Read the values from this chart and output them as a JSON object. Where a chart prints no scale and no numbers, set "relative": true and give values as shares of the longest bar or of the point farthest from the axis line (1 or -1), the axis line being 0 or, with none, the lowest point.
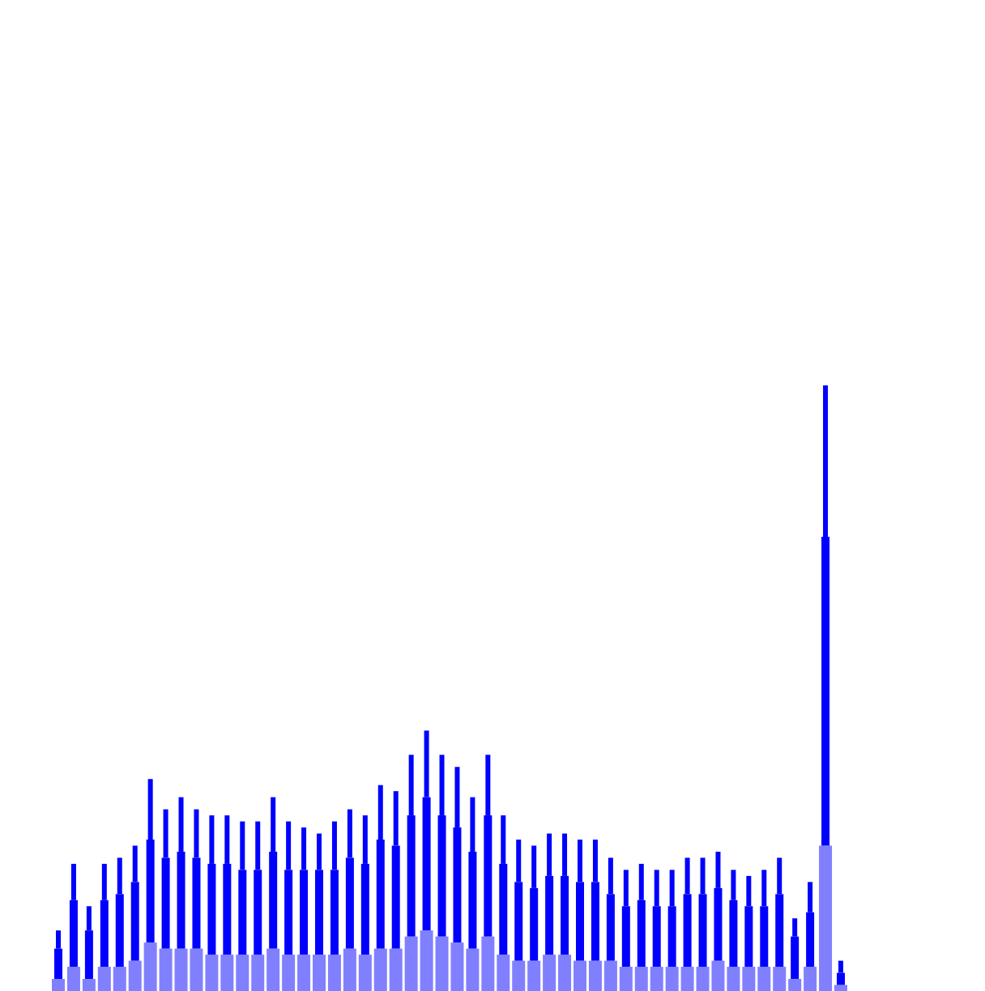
{
  "chart_data": {
    "type": "bar",
    "stacked": true,
    "relative": true,
    "categories": [
      null,
      null,
      null,
      null,
      null,
      null,
      null,
      null,
      null,
      null,
      null,
      null,
      null,
      null,
      null,
      null,
      null,
      null,
      null,
      null,
      null,
      null,
      null,
      null,
      null,
      null,
      null,
      null,
      null,
      null,
      null,
      null,
      null,
      null,
      null,
      null,
      null,
      null,
      null,
      null,
      null,
      null,
      null,
      null,
      null,
      null,
      null,
      null,
      null,
      null,
      null,
      null
    ],
    "series": [
      {
        "color": "#8080ff",
        "values": [
          0.02,
          0.04,
          0.02,
          0.04,
          0.04,
          0.05,
          0.08,
          0.07,
          0.07,
          0.07,
          0.06,
          0.06,
          0.06,
          0.06,
          0.07,
          0.06,
          0.06,
          0.06,
          0.06,
          0.07,
          0.06,
          0.07,
          0.07,
          0.09,
          0.1,
          0.09,
          0.08,
          0.07,
          0.09,
          0.06,
          0.05,
          0.05,
          0.06,
          0.06,
          0.05,
          0.05,
          0.05,
          0.04,
          0.04,
          0.04,
          0.04,
          0.04,
          0.04,
          0.05,
          0.04,
          0.04,
          0.04,
          0.04,
          0.02,
          0.04,
          0.24,
          0.01
        ]
      },
      {
        "color": "#0000ff",
        "values": [
          0.05,
          0.11,
          0.08,
          0.11,
          0.12,
          0.13,
          0.17,
          0.15,
          0.16,
          0.15,
          0.15,
          0.15,
          0.14,
          0.14,
          0.16,
          0.14,
          0.14,
          0.14,
          0.14,
          0.15,
          0.15,
          0.18,
          0.17,
          0.2,
          0.22,
          0.2,
          0.19,
          0.16,
          0.2,
          0.15,
          0.13,
          0.12,
          0.13,
          0.13,
          0.13,
          0.13,
          0.11,
          0.1,
          0.11,
          0.1,
          0.1,
          0.12,
          0.12,
          0.12,
          0.11,
          0.1,
          0.1,
          0.12,
          0.07,
          0.09,
          0.51,
          0.02
        ]
      },
      {
        "color": "#0000ff",
        "values": [
          0.03,
          0.06,
          0.04,
          0.06,
          0.06,
          0.06,
          0.1,
          0.08,
          0.09,
          0.08,
          0.08,
          0.08,
          0.08,
          0.08,
          0.09,
          0.08,
          0.07,
          0.06,
          0.08,
          0.08,
          0.08,
          0.09,
          0.09,
          0.1,
          0.11,
          0.1,
          0.1,
          0.09,
          0.1,
          0.08,
          0.07,
          0.07,
          0.07,
          0.07,
          0.07,
          0.07,
          0.06,
          0.06,
          0.06,
          0.06,
          0.06,
          0.06,
          0.06,
          0.06,
          0.05,
          0.05,
          0.06,
          0.06,
          0.03,
          0.05,
          0.25,
          0.02
        ]
      }
    ]
  }
}
